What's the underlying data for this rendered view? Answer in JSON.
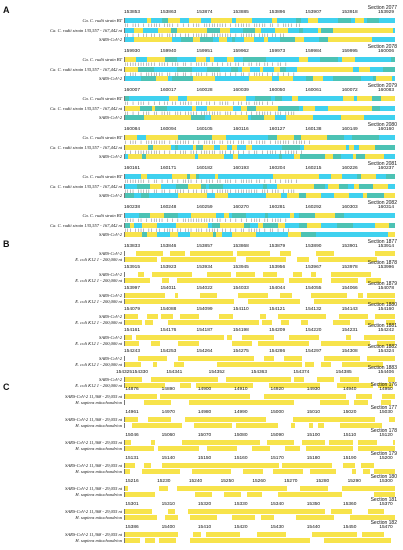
{
  "colors": {
    "yellow": "#f7e34b",
    "cyan": "#3fd1ef",
    "teal": "#4cc2b4",
    "white": "#ffffff",
    "text": "#111111"
  },
  "panels": [
    {
      "letter": "A",
      "labels": [
        "Ca. C. rudii strain BT",
        "Ca. C. rudii strain 135,557 - 167,442 nt",
        "SARS-CoV-2"
      ],
      "blocks": [
        {
          "section": "Section 2077",
          "ticks": [
            "153853",
            "153863",
            "153874",
            "153885",
            "153896",
            "153907",
            "153918",
            "153929"
          ]
        },
        {
          "section": "Section 2078",
          "ticks": [
            "159930",
            "159940",
            "159951",
            "159962",
            "159973",
            "159984",
            "159995",
            "160006"
          ]
        },
        {
          "section": "Section 2079",
          "ticks": [
            "160007",
            "160017",
            "160028",
            "160039",
            "160050",
            "160061",
            "160072",
            "160083"
          ]
        },
        {
          "section": "Section 2080",
          "ticks": [
            "160084",
            "160094",
            "160105",
            "160116",
            "160127",
            "160138",
            "160149",
            "160160"
          ]
        },
        {
          "section": "Section 2081",
          "ticks": [
            "160161",
            "160171",
            "160182",
            "160193",
            "160204",
            "160215",
            "160226",
            "160237"
          ]
        },
        {
          "section": "Section 2082",
          "ticks": [
            "160238",
            "160248",
            "160259",
            "160270",
            "160281",
            "160292",
            "160303",
            "160314"
          ]
        }
      ]
    },
    {
      "letter": "B",
      "labels": [
        "SARS-CoV-2",
        "E. coli K12 1 - 200,000 nt"
      ],
      "blocks": [
        {
          "section": "Section 1877",
          "ticks": [
            "153833",
            "153846",
            "153857",
            "153868",
            "153879",
            "153890",
            "153901",
            "153914"
          ]
        },
        {
          "section": "Section 1878",
          "ticks": [
            "153915",
            "153923",
            "153934",
            "153945",
            "153956",
            "153967",
            "153978",
            "153996"
          ]
        },
        {
          "section": "Section 1879",
          "ticks": [
            "153997",
            "154011",
            "154022",
            "154033",
            "154044",
            "154055",
            "154066",
            "154078"
          ]
        },
        {
          "section": "Section 1880",
          "ticks": [
            "154079",
            "154088",
            "154099",
            "154110",
            "154121",
            "154132",
            "154143",
            "154160"
          ]
        },
        {
          "section": "Section 1881",
          "ticks": [
            "154161",
            "154176",
            "154187",
            "154198",
            "154209",
            "154220",
            "154231",
            "154242"
          ]
        },
        {
          "section": "Section 1882",
          "ticks": [
            "154243",
            "154253",
            "154264",
            "154275",
            "154286",
            "154297",
            "154308",
            "154324"
          ]
        },
        {
          "section": "Section 1883",
          "ticks": [
            "154325154330",
            "154341",
            "154352",
            "154363",
            "154374",
            "154385",
            "154406"
          ]
        }
      ]
    },
    {
      "letter": "C",
      "labels": [
        "SARS-CoV-2 11,368 - 29,055 nt",
        "H. sapiens mitochondrion"
      ],
      "blocks": [
        {
          "section": "Section 176",
          "ticks": [
            "14876",
            "14890",
            "14900",
            "14910",
            "14920",
            "14930",
            "14940",
            "14950"
          ]
        },
        {
          "section": "Section 177",
          "ticks": [
            "14961",
            "14970",
            "14980",
            "14990",
            "15000",
            "15010",
            "15020",
            "15030"
          ]
        },
        {
          "section": "Section 178",
          "ticks": [
            "15046",
            "15060",
            "15070",
            "15080",
            "15090",
            "15100",
            "15110",
            "15120"
          ]
        },
        {
          "section": "Section 179",
          "ticks": [
            "15131",
            "15140",
            "15150",
            "15160",
            "15170",
            "15180",
            "15190",
            "15200"
          ]
        },
        {
          "section": "Section 180",
          "ticks": [
            "15216",
            "15230",
            "15240",
            "15250",
            "15260",
            "15270",
            "15280",
            "15290",
            "15300"
          ]
        },
        {
          "section": "Section 181",
          "ticks": [
            "15301",
            "15310",
            "15320",
            "15330",
            "15340",
            "15350",
            "15360",
            "15370"
          ]
        },
        {
          "section": "Section 182",
          "ticks": [
            "15386",
            "15400",
            "15410",
            "15420",
            "15430",
            "15440",
            "15450",
            "15470"
          ]
        }
      ]
    }
  ]
}
